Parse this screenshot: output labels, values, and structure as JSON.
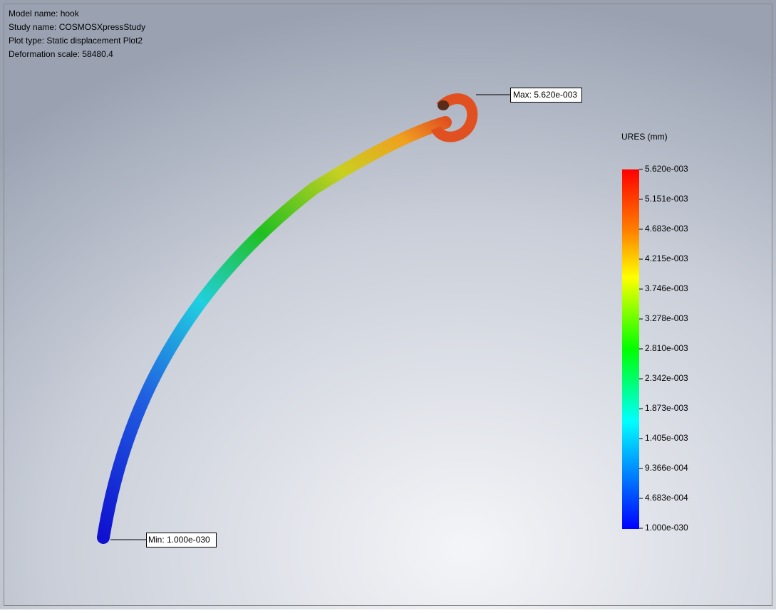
{
  "header": {
    "lines": [
      "Model name: hook",
      "Study name: COSMOSXpressStudy",
      "Plot type: Static displacement Plot2",
      "Deformation scale: 58480.4"
    ]
  },
  "annotations": {
    "max": "Max: 5.620e-003",
    "min": "Min: 1.000e-030"
  },
  "legend": {
    "title": "URES (mm)",
    "labels": [
      "5.620e-003",
      "5.151e-003",
      "4.683e-003",
      "4.215e-003",
      "3.746e-003",
      "3.278e-003",
      "2.810e-003",
      "2.342e-003",
      "1.873e-003",
      "1.405e-003",
      "9.366e-004",
      "4.683e-004",
      "1.000e-030"
    ]
  }
}
